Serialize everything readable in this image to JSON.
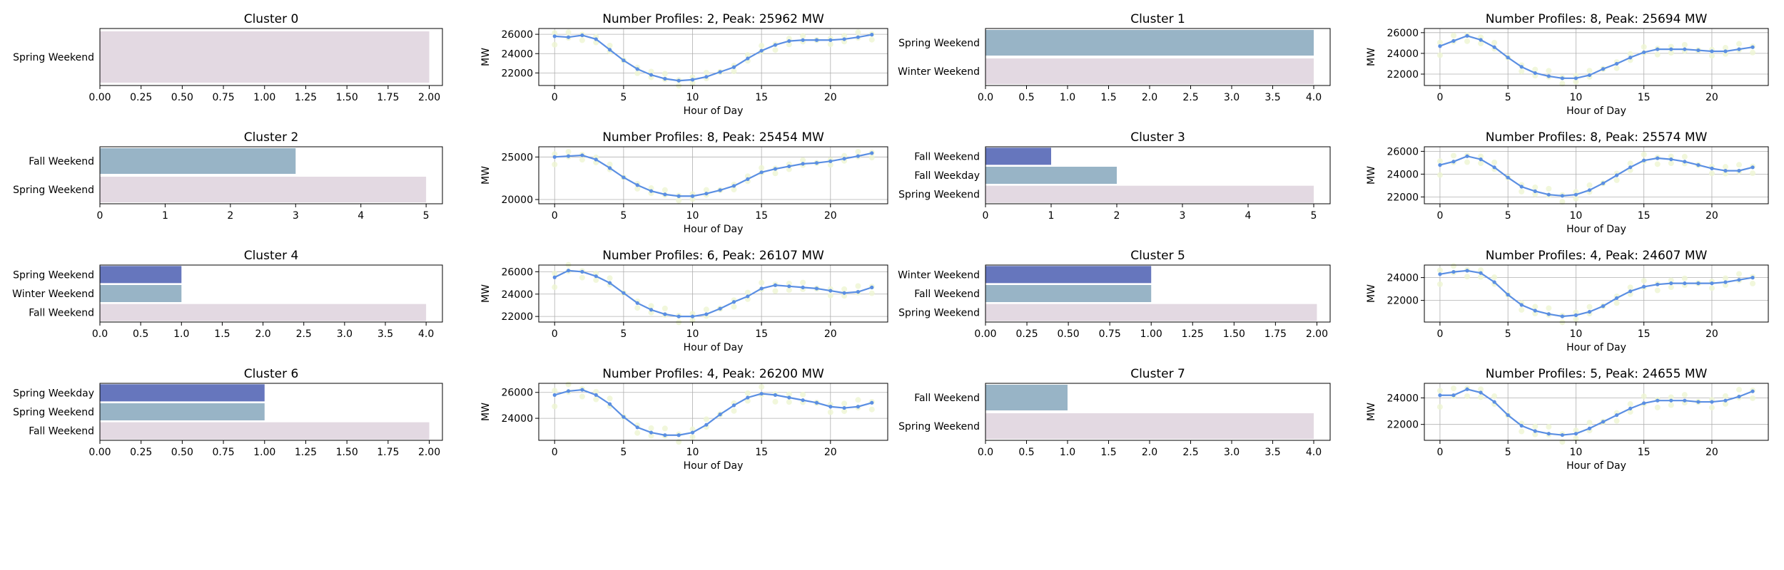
{
  "colors": {
    "bar_colors": [
      "#e3d9e2",
      "#98b4c6",
      "#6676bd"
    ],
    "line": "#5b8fe3",
    "scatter": "#eef5d2",
    "grid": "#b0b0b0"
  },
  "chart_data": [
    {
      "type": "bar",
      "orientation": "horizontal",
      "title": "Cluster 0",
      "categories": [
        "Spring Weekend"
      ],
      "values": [
        2
      ],
      "xlim": [
        0,
        2.08
      ],
      "xticks": [
        "0.00",
        "0.25",
        "0.50",
        "0.75",
        "1.00",
        "1.25",
        "1.50",
        "1.75",
        "2.00"
      ],
      "xtick_values": [
        0,
        0.25,
        0.5,
        0.75,
        1,
        1.25,
        1.5,
        1.75,
        2
      ]
    },
    {
      "type": "line",
      "title": "Number Profiles: 2, Peak: 25962 MW",
      "xlabel": "Hour of Day",
      "ylabel": "MW",
      "x": [
        0,
        1,
        2,
        3,
        4,
        5,
        6,
        7,
        8,
        9,
        10,
        11,
        12,
        13,
        14,
        15,
        16,
        17,
        18,
        19,
        20,
        21,
        22,
        23
      ],
      "y": [
        25800,
        25700,
        25900,
        25500,
        24400,
        23300,
        22400,
        21800,
        21400,
        21200,
        21300,
        21600,
        22100,
        22600,
        23500,
        24300,
        24900,
        25300,
        25400,
        25400,
        25400,
        25500,
        25700,
        25962
      ],
      "xlim": [
        -1.15,
        24.15
      ],
      "ylim": [
        20700,
        26600
      ],
      "xticks": [
        "0",
        "5",
        "10",
        "15",
        "20"
      ],
      "xtick_values": [
        0,
        5,
        10,
        15,
        20
      ],
      "yticks": [
        "22000",
        "24000",
        "26000"
      ],
      "ytick_values": [
        22000,
        24000,
        26000
      ]
    },
    {
      "type": "bar",
      "orientation": "horizontal",
      "title": "Cluster 1",
      "categories": [
        "Winter Weekend",
        "Spring Weekend"
      ],
      "values": [
        4,
        4
      ],
      "xlim": [
        0,
        4.2
      ],
      "xticks": [
        "0.0",
        "0.5",
        "1.0",
        "1.5",
        "2.0",
        "2.5",
        "3.0",
        "3.5",
        "4.0"
      ],
      "xtick_values": [
        0,
        0.5,
        1,
        1.5,
        2,
        2.5,
        3,
        3.5,
        4
      ]
    },
    {
      "type": "line",
      "title": "Number Profiles: 8, Peak: 25694 MW",
      "xlabel": "Hour of Day",
      "ylabel": "MW",
      "x": [
        0,
        1,
        2,
        3,
        4,
        5,
        6,
        7,
        8,
        9,
        10,
        11,
        12,
        13,
        14,
        15,
        16,
        17,
        18,
        19,
        20,
        21,
        22,
        23
      ],
      "y": [
        24700,
        25200,
        25694,
        25300,
        24600,
        23600,
        22700,
        22100,
        21800,
        21600,
        21600,
        21900,
        22500,
        23000,
        23600,
        24100,
        24400,
        24400,
        24400,
        24300,
        24200,
        24200,
        24400,
        24600
      ],
      "xlim": [
        -1.15,
        24.15
      ],
      "ylim": [
        20900,
        26400
      ],
      "xticks": [
        "0",
        "5",
        "10",
        "15",
        "20"
      ],
      "xtick_values": [
        0,
        5,
        10,
        15,
        20
      ],
      "yticks": [
        "22000",
        "24000",
        "26000"
      ],
      "ytick_values": [
        22000,
        24000,
        26000
      ]
    },
    {
      "type": "bar",
      "orientation": "horizontal",
      "title": "Cluster 2",
      "categories": [
        "Spring Weekend",
        "Fall Weekend"
      ],
      "values": [
        5,
        3
      ],
      "xlim": [
        0,
        5.25
      ],
      "xticks": [
        "0",
        "1",
        "2",
        "3",
        "4",
        "5"
      ],
      "xtick_values": [
        0,
        1,
        2,
        3,
        4,
        5
      ]
    },
    {
      "type": "line",
      "title": "Number Profiles: 8, Peak: 25454 MW",
      "xlabel": "Hour of Day",
      "ylabel": "MW",
      "x": [
        0,
        1,
        2,
        3,
        4,
        5,
        6,
        7,
        8,
        9,
        10,
        11,
        12,
        13,
        14,
        15,
        16,
        17,
        18,
        19,
        20,
        21,
        22,
        23
      ],
      "y": [
        25000,
        25100,
        25200,
        24700,
        23700,
        22600,
        21700,
        21000,
        20600,
        20400,
        20400,
        20700,
        21100,
        21600,
        22400,
        23200,
        23600,
        23900,
        24200,
        24300,
        24500,
        24800,
        25100,
        25454
      ],
      "xlim": [
        -1.15,
        24.15
      ],
      "ylim": [
        19500,
        26200
      ],
      "xticks": [
        "0",
        "5",
        "10",
        "15",
        "20"
      ],
      "xtick_values": [
        0,
        5,
        10,
        15,
        20
      ],
      "yticks": [
        "20000",
        "25000"
      ],
      "ytick_values": [
        20000,
        25000
      ]
    },
    {
      "type": "bar",
      "orientation": "horizontal",
      "title": "Cluster 3",
      "categories": [
        "Spring Weekend",
        "Fall Weekday",
        "Fall Weekend"
      ],
      "values": [
        5,
        2,
        1
      ],
      "xlim": [
        0,
        5.25
      ],
      "xticks": [
        "0",
        "1",
        "2",
        "3",
        "4",
        "5"
      ],
      "xtick_values": [
        0,
        1,
        2,
        3,
        4,
        5
      ]
    },
    {
      "type": "line",
      "title": "Number Profiles: 8, Peak: 25574 MW",
      "xlabel": "Hour of Day",
      "ylabel": "MW",
      "x": [
        0,
        1,
        2,
        3,
        4,
        5,
        6,
        7,
        8,
        9,
        10,
        11,
        12,
        13,
        14,
        15,
        16,
        17,
        18,
        19,
        20,
        21,
        22,
        23
      ],
      "y": [
        24800,
        25100,
        25574,
        25300,
        24600,
        23700,
        22900,
        22500,
        22200,
        22100,
        22200,
        22600,
        23200,
        23900,
        24600,
        25200,
        25400,
        25300,
        25100,
        24800,
        24500,
        24300,
        24300,
        24600
      ],
      "xlim": [
        -1.15,
        24.15
      ],
      "ylim": [
        21400,
        26400
      ],
      "xticks": [
        "0",
        "5",
        "10",
        "15",
        "20"
      ],
      "xtick_values": [
        0,
        5,
        10,
        15,
        20
      ],
      "yticks": [
        "22000",
        "24000",
        "26000"
      ],
      "ytick_values": [
        22000,
        24000,
        26000
      ]
    },
    {
      "type": "bar",
      "orientation": "horizontal",
      "title": "Cluster 4",
      "categories": [
        "Fall Weekend",
        "Winter Weekend",
        "Spring Weekend"
      ],
      "values": [
        4,
        1,
        1
      ],
      "xlim": [
        0,
        4.2
      ],
      "xticks": [
        "0.0",
        "0.5",
        "1.0",
        "1.5",
        "2.0",
        "2.5",
        "3.0",
        "3.5",
        "4.0"
      ],
      "xtick_values": [
        0,
        0.5,
        1,
        1.5,
        2,
        2.5,
        3,
        3.5,
        4
      ]
    },
    {
      "type": "line",
      "title": "Number Profiles: 6, Peak: 26107 MW",
      "xlabel": "Hour of Day",
      "ylabel": "MW",
      "x": [
        0,
        1,
        2,
        3,
        4,
        5,
        6,
        7,
        8,
        9,
        10,
        11,
        12,
        13,
        14,
        15,
        16,
        17,
        18,
        19,
        20,
        21,
        22,
        23
      ],
      "y": [
        25500,
        26107,
        26000,
        25600,
        25000,
        24100,
        23200,
        22600,
        22200,
        22000,
        22000,
        22200,
        22700,
        23300,
        23800,
        24500,
        24800,
        24700,
        24600,
        24500,
        24300,
        24100,
        24200,
        24600
      ],
      "xlim": [
        -1.15,
        24.15
      ],
      "ylim": [
        21500,
        26600
      ],
      "xticks": [
        "0",
        "5",
        "10",
        "15",
        "20"
      ],
      "xtick_values": [
        0,
        5,
        10,
        15,
        20
      ],
      "yticks": [
        "22000",
        "24000",
        "26000"
      ],
      "ytick_values": [
        22000,
        24000,
        26000
      ]
    },
    {
      "type": "bar",
      "orientation": "horizontal",
      "title": "Cluster 5",
      "categories": [
        "Spring Weekend",
        "Fall Weekend",
        "Winter Weekend"
      ],
      "values": [
        2,
        1,
        1
      ],
      "xlim": [
        0,
        2.08
      ],
      "xticks": [
        "0.00",
        "0.25",
        "0.50",
        "0.75",
        "1.00",
        "1.25",
        "1.50",
        "1.75",
        "2.00"
      ],
      "xtick_values": [
        0,
        0.25,
        0.5,
        0.75,
        1,
        1.25,
        1.5,
        1.75,
        2
      ]
    },
    {
      "type": "line",
      "title": "Number Profiles: 4, Peak: 24607 MW",
      "xlabel": "Hour of Day",
      "ylabel": "MW",
      "x": [
        0,
        1,
        2,
        3,
        4,
        5,
        6,
        7,
        8,
        9,
        10,
        11,
        12,
        13,
        14,
        15,
        16,
        17,
        18,
        19,
        20,
        21,
        22,
        23
      ],
      "y": [
        24300,
        24500,
        24607,
        24400,
        23600,
        22500,
        21600,
        21100,
        20800,
        20600,
        20700,
        21000,
        21500,
        22200,
        22800,
        23200,
        23400,
        23500,
        23500,
        23500,
        23500,
        23600,
        23800,
        24000
      ],
      "xlim": [
        -1.15,
        24.15
      ],
      "ylim": [
        20100,
        25100
      ],
      "xticks": [
        "0",
        "5",
        "10",
        "15",
        "20"
      ],
      "xtick_values": [
        0,
        5,
        10,
        15,
        20
      ],
      "yticks": [
        "22000",
        "24000"
      ],
      "ytick_values": [
        22000,
        24000
      ]
    },
    {
      "type": "bar",
      "orientation": "horizontal",
      "title": "Cluster 6",
      "categories": [
        "Fall Weekend",
        "Spring Weekend",
        "Spring Weekday"
      ],
      "values": [
        2,
        1,
        1
      ],
      "xlim": [
        0,
        2.08
      ],
      "xticks": [
        "0.00",
        "0.25",
        "0.50",
        "0.75",
        "1.00",
        "1.25",
        "1.50",
        "1.75",
        "2.00"
      ],
      "xtick_values": [
        0,
        0.25,
        0.5,
        0.75,
        1,
        1.25,
        1.5,
        1.75,
        2
      ]
    },
    {
      "type": "line",
      "title": "Number Profiles: 4, Peak: 26200 MW",
      "xlabel": "Hour of Day",
      "ylabel": "MW",
      "x": [
        0,
        1,
        2,
        3,
        4,
        5,
        6,
        7,
        8,
        9,
        10,
        11,
        12,
        13,
        14,
        15,
        16,
        17,
        18,
        19,
        20,
        21,
        22,
        23
      ],
      "y": [
        25800,
        26100,
        26200,
        25800,
        25100,
        24100,
        23300,
        22900,
        22700,
        22700,
        22900,
        23500,
        24300,
        25000,
        25600,
        25900,
        25800,
        25600,
        25400,
        25200,
        24900,
        24800,
        24900,
        25200
      ],
      "xlim": [
        -1.15,
        24.15
      ],
      "ylim": [
        22300,
        26700
      ],
      "xticks": [
        "0",
        "5",
        "10",
        "15",
        "20"
      ],
      "xtick_values": [
        0,
        5,
        10,
        15,
        20
      ],
      "yticks": [
        "24000",
        "26000"
      ],
      "ytick_values": [
        24000,
        26000
      ]
    },
    {
      "type": "bar",
      "orientation": "horizontal",
      "title": "Cluster 7",
      "categories": [
        "Spring Weekend",
        "Fall Weekend"
      ],
      "values": [
        4,
        1
      ],
      "xlim": [
        0,
        4.2
      ],
      "xticks": [
        "0.0",
        "0.5",
        "1.0",
        "1.5",
        "2.0",
        "2.5",
        "3.0",
        "3.5",
        "4.0"
      ],
      "xtick_values": [
        0,
        0.5,
        1,
        1.5,
        2,
        2.5,
        3,
        3.5,
        4
      ]
    },
    {
      "type": "line",
      "title": "Number Profiles: 5, Peak: 24655 MW",
      "xlabel": "Hour of Day",
      "ylabel": "MW",
      "x": [
        0,
        1,
        2,
        3,
        4,
        5,
        6,
        7,
        8,
        9,
        10,
        11,
        12,
        13,
        14,
        15,
        16,
        17,
        18,
        19,
        20,
        21,
        22,
        23
      ],
      "y": [
        24200,
        24200,
        24655,
        24400,
        23700,
        22700,
        21900,
        21500,
        21300,
        21200,
        21300,
        21700,
        22200,
        22700,
        23200,
        23600,
        23800,
        23800,
        23800,
        23700,
        23700,
        23800,
        24100,
        24500
      ],
      "xlim": [
        -1.15,
        24.15
      ],
      "ylim": [
        20800,
        25100
      ],
      "xticks": [
        "0",
        "5",
        "10",
        "15",
        "20"
      ],
      "xtick_values": [
        0,
        5,
        10,
        15,
        20
      ],
      "yticks": [
        "22000",
        "24000"
      ],
      "ytick_values": [
        22000,
        24000
      ]
    }
  ]
}
